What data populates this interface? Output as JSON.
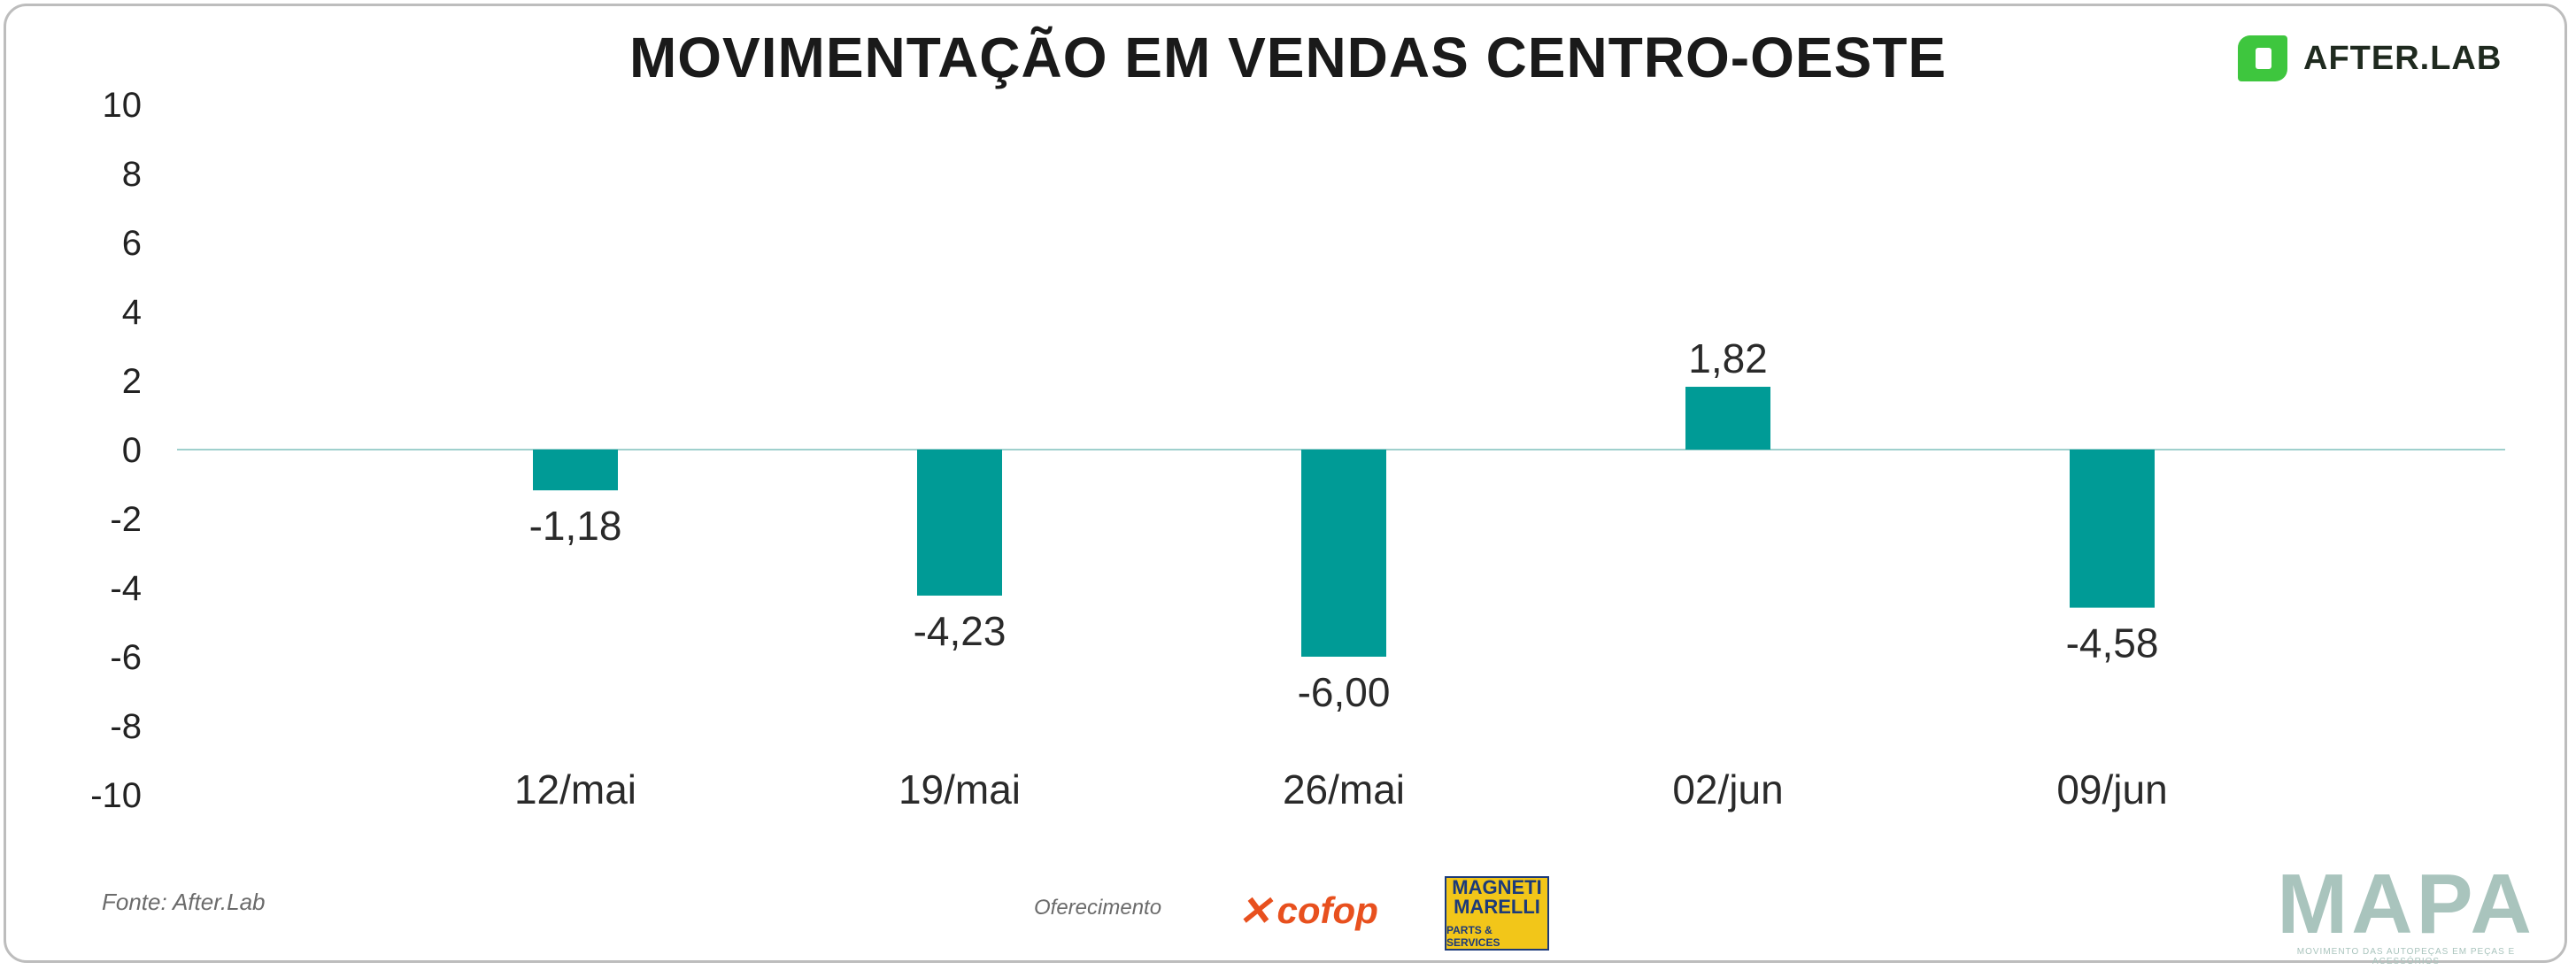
{
  "title": "MOVIMENTAÇÃO EM VENDAS CENTRO-OESTE",
  "brand": {
    "name": "AFTER.LAB",
    "accent": "#3ec63e"
  },
  "source": "Fonte: After.Lab",
  "offered_by": "Oferecimento",
  "sponsors": {
    "cofop": "cofop",
    "marelli_line1": "MAGNETI",
    "marelli_line2": "MARELLI",
    "marelli_line3": "PARTS & SERVICES"
  },
  "footer_logo": {
    "name": "MAPA",
    "tagline": "MOVIMENTO DAS AUTOPEÇAS EM PEÇAS E ACESSÓRIOS"
  },
  "chart_data": {
    "type": "bar",
    "categories": [
      "12/mai",
      "19/mai",
      "26/mai",
      "02/jun",
      "09/jun"
    ],
    "values": [
      -1.18,
      -4.23,
      -6.0,
      1.82,
      -4.58
    ],
    "value_labels": [
      "-1,18",
      "-4,23",
      "-6,00",
      "1,82",
      "-4,58"
    ],
    "ylim": [
      -10,
      10
    ],
    "yticks": [
      -10,
      -8,
      -6,
      -4,
      -2,
      0,
      2,
      4,
      6,
      8,
      10
    ],
    "grid": false,
    "bar_color": "#009b96"
  }
}
